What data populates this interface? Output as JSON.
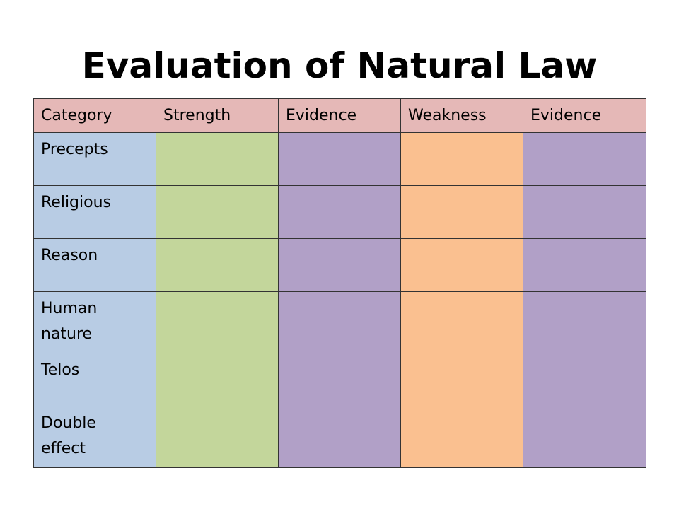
{
  "title": "Evaluation of Natural Law",
  "table": {
    "headers": [
      "Category",
      "Strength",
      "Evidence",
      "Weakness",
      "Evidence"
    ],
    "rows": [
      {
        "category_lines": [
          "Precepts"
        ]
      },
      {
        "category_lines": [
          "Religious"
        ]
      },
      {
        "category_lines": [
          "Reason"
        ]
      },
      {
        "category_lines": [
          "Human",
          "nature"
        ]
      },
      {
        "category_lines": [
          "Telos"
        ]
      },
      {
        "category_lines": [
          "Double",
          "effect"
        ]
      }
    ]
  },
  "colors": {
    "header": "#e5b8b7",
    "category": "#b8cce4",
    "strength": "#c3d69b",
    "evidence": "#b1a0c7",
    "weakness": "#fac090"
  }
}
